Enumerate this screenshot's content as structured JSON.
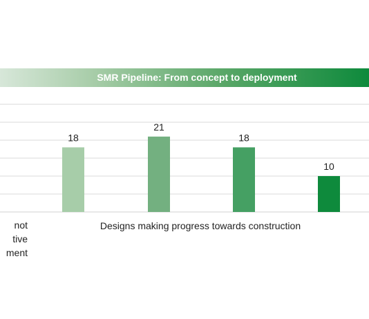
{
  "chart_data": {
    "type": "bar",
    "title": "SMR Pipeline: From concept to deployment",
    "categories": [
      "",
      "",
      "",
      ""
    ],
    "values": [
      18,
      21,
      18,
      10
    ],
    "data_labels": [
      "18",
      "21",
      "18",
      "10"
    ],
    "bar_colors": [
      "#a7cda9",
      "#73b080",
      "#45a063",
      "#0e8a3c"
    ],
    "ylim": [
      0,
      30
    ],
    "grid": true,
    "legend": "none",
    "group_labels": {
      "left_partial": [
        "not",
        "tive",
        "ment"
      ],
      "right": "Designs making progress towards construction"
    }
  },
  "colors": {
    "banner_start": "#d7e7d9",
    "banner_end": "#0e8a3c",
    "gridline": "#d9d9d9"
  }
}
